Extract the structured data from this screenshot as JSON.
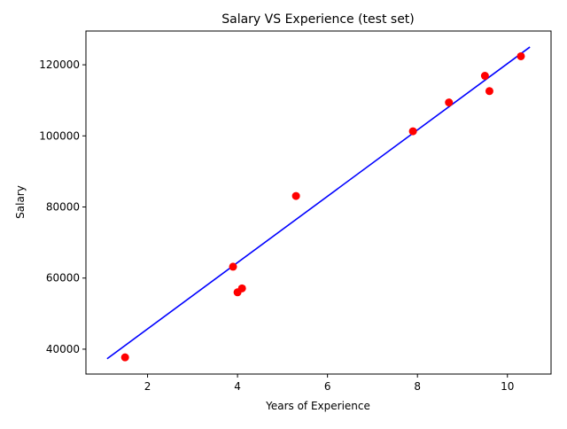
{
  "chart_data": {
    "type": "scatter",
    "title": "Salary VS Experience (test set)",
    "xlabel": "Years of Experience",
    "ylabel": "Salary",
    "xlim": [
      0.63,
      10.97
    ],
    "ylim": [
      33000,
      129500
    ],
    "xticks": [
      2,
      4,
      6,
      8,
      10
    ],
    "yticks": [
      40000,
      60000,
      80000,
      100000,
      120000
    ],
    "xtick_labels": [
      "2",
      "4",
      "6",
      "8",
      "10"
    ],
    "ytick_labels": [
      "40000",
      "60000",
      "80000",
      "100000",
      "120000"
    ],
    "grid": false,
    "legend": "none",
    "series": [
      {
        "kind": "scatter",
        "color": "#ff0000",
        "x": [
          1.5,
          3.9,
          4.0,
          4.1,
          5.3,
          7.9,
          8.7,
          9.5,
          9.6,
          10.3
        ],
        "y": [
          37700,
          63200,
          56000,
          57100,
          83100,
          101300,
          109400,
          116900,
          112600,
          122400
        ]
      },
      {
        "kind": "line",
        "color": "#0000ff",
        "x": [
          1.1,
          10.5
        ],
        "y": [
          37300,
          125000
        ]
      }
    ]
  }
}
